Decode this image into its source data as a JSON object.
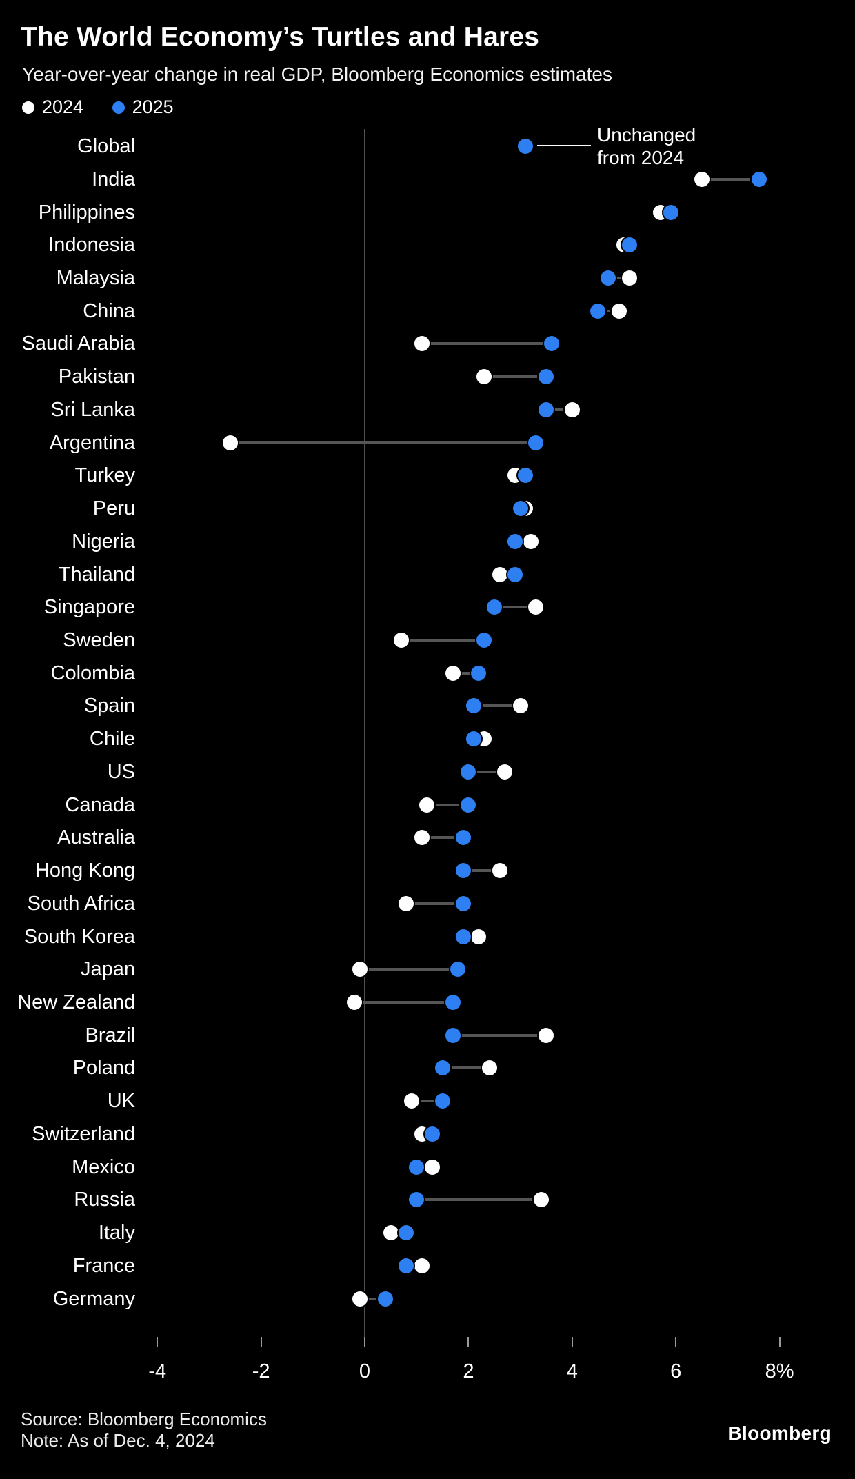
{
  "header": {
    "title": "The World Economy’s Turtles and Hares",
    "subtitle": "Year-over-year change in real GDP, Bloomberg Economics estimates"
  },
  "legend": {
    "items": [
      {
        "label": "2024",
        "color": "#ffffff"
      },
      {
        "label": "2025",
        "color": "#2d7ff2"
      }
    ]
  },
  "annotation": {
    "line1": "Unchanged",
    "line2": "from 2024",
    "target_row": "Global"
  },
  "colors": {
    "background": "#000000",
    "dot_white": "#ffffff",
    "dot_blue": "#2d7ff2",
    "connector": "#555555",
    "grid": "#4f4f4f"
  },
  "chart_data": {
    "type": "scatter",
    "subtype": "dumbbell",
    "title": "The World Economy’s Turtles and Hares",
    "xlabel": "Year-over-year change in real GDP (%)",
    "ylabel": "",
    "xlim": [
      -4.9,
      9.4
    ],
    "grid": "zero-line-only",
    "legend_position": "top-left",
    "series_names": [
      "2024",
      "2025"
    ],
    "ticks": [
      {
        "value": -4,
        "label": "-4"
      },
      {
        "value": -2,
        "label": "-2"
      },
      {
        "value": 0,
        "label": "0"
      },
      {
        "value": 2,
        "label": "2"
      },
      {
        "value": 4,
        "label": "4"
      },
      {
        "value": 6,
        "label": "6"
      },
      {
        "value": 8,
        "label": "8%"
      }
    ],
    "rows": [
      {
        "label": "Global",
        "v2024": 3.1,
        "v2025": 3.1
      },
      {
        "label": "India",
        "v2024": 6.5,
        "v2025": 7.6
      },
      {
        "label": "Philippines",
        "v2024": 5.7,
        "v2025": 5.9
      },
      {
        "label": "Indonesia",
        "v2024": 5.0,
        "v2025": 5.1
      },
      {
        "label": "Malaysia",
        "v2024": 5.1,
        "v2025": 4.7
      },
      {
        "label": "China",
        "v2024": 4.9,
        "v2025": 4.5
      },
      {
        "label": "Saudi Arabia",
        "v2024": 1.1,
        "v2025": 3.6
      },
      {
        "label": "Pakistan",
        "v2024": 2.3,
        "v2025": 3.5
      },
      {
        "label": "Sri Lanka",
        "v2024": 4.0,
        "v2025": 3.5
      },
      {
        "label": "Argentina",
        "v2024": -2.6,
        "v2025": 3.3
      },
      {
        "label": "Turkey",
        "v2024": 2.9,
        "v2025": 3.1
      },
      {
        "label": "Peru",
        "v2024": 3.1,
        "v2025": 3.0
      },
      {
        "label": "Nigeria",
        "v2024": 3.2,
        "v2025": 2.9
      },
      {
        "label": "Thailand",
        "v2024": 2.6,
        "v2025": 2.9
      },
      {
        "label": "Singapore",
        "v2024": 3.3,
        "v2025": 2.5
      },
      {
        "label": "Sweden",
        "v2024": 0.7,
        "v2025": 2.3
      },
      {
        "label": "Colombia",
        "v2024": 1.7,
        "v2025": 2.2
      },
      {
        "label": "Spain",
        "v2024": 3.0,
        "v2025": 2.1
      },
      {
        "label": "Chile",
        "v2024": 2.3,
        "v2025": 2.1
      },
      {
        "label": "US",
        "v2024": 2.7,
        "v2025": 2.0
      },
      {
        "label": "Canada",
        "v2024": 1.2,
        "v2025": 2.0
      },
      {
        "label": "Australia",
        "v2024": 1.1,
        "v2025": 1.9
      },
      {
        "label": "Hong Kong",
        "v2024": 2.6,
        "v2025": 1.9
      },
      {
        "label": "South Africa",
        "v2024": 0.8,
        "v2025": 1.9
      },
      {
        "label": "South Korea",
        "v2024": 2.2,
        "v2025": 1.9
      },
      {
        "label": "Japan",
        "v2024": -0.1,
        "v2025": 1.8
      },
      {
        "label": "New Zealand",
        "v2024": -0.2,
        "v2025": 1.7
      },
      {
        "label": "Brazil",
        "v2024": 3.5,
        "v2025": 1.7
      },
      {
        "label": "Poland",
        "v2024": 2.4,
        "v2025": 1.5
      },
      {
        "label": "UK",
        "v2024": 0.9,
        "v2025": 1.5
      },
      {
        "label": "Switzerland",
        "v2024": 1.1,
        "v2025": 1.3
      },
      {
        "label": "Mexico",
        "v2024": 1.3,
        "v2025": 1.0
      },
      {
        "label": "Russia",
        "v2024": 3.4,
        "v2025": 1.0
      },
      {
        "label": "Italy",
        "v2024": 0.5,
        "v2025": 0.8
      },
      {
        "label": "France",
        "v2024": 1.1,
        "v2025": 0.8
      },
      {
        "label": "Germany",
        "v2024": -0.1,
        "v2025": 0.4
      }
    ]
  },
  "footer": {
    "source": "Source: Bloomberg Economics",
    "note": "Note: As of Dec. 4, 2024",
    "logo": "Bloomberg"
  }
}
